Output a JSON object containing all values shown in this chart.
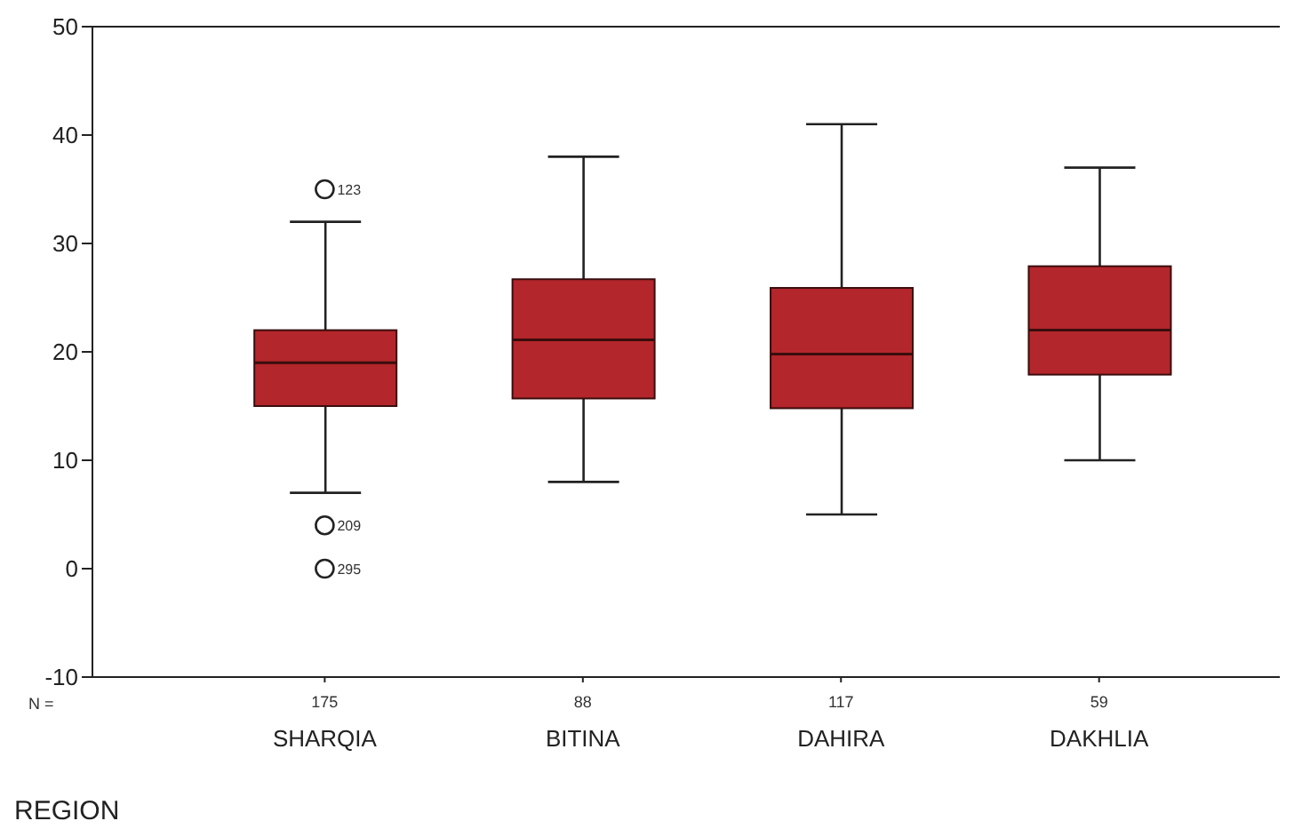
{
  "chart_data": {
    "type": "box",
    "xlabel": "REGION",
    "categories": [
      "SHARQIA",
      "BITINA",
      "DAHIRA",
      "DAKHLIA"
    ],
    "color": "#b3262b",
    "boxes": [
      {
        "low": 7,
        "q1": 15,
        "median": 19,
        "q3": 22,
        "high": 32,
        "outliers": [
          35,
          4,
          0
        ]
      },
      {
        "low": 8,
        "q1": 15.7,
        "median": 21.1,
        "q3": 26.7,
        "high": 38
      },
      {
        "low": 5,
        "q1": 14.8,
        "median": 19.8,
        "q3": 25.9,
        "high": 41
      },
      {
        "low": 10,
        "q1": 17.9,
        "median": 22,
        "q3": 27.9,
        "high": 37
      }
    ],
    "ylim": [
      -10,
      50
    ],
    "yticks": [
      -10,
      0,
      10,
      20,
      30,
      40,
      50
    ],
    "grid": false,
    "legend": false,
    "annotations": [
      "N =",
      "175",
      "88",
      "117",
      "59",
      "123",
      "209",
      "295"
    ]
  }
}
